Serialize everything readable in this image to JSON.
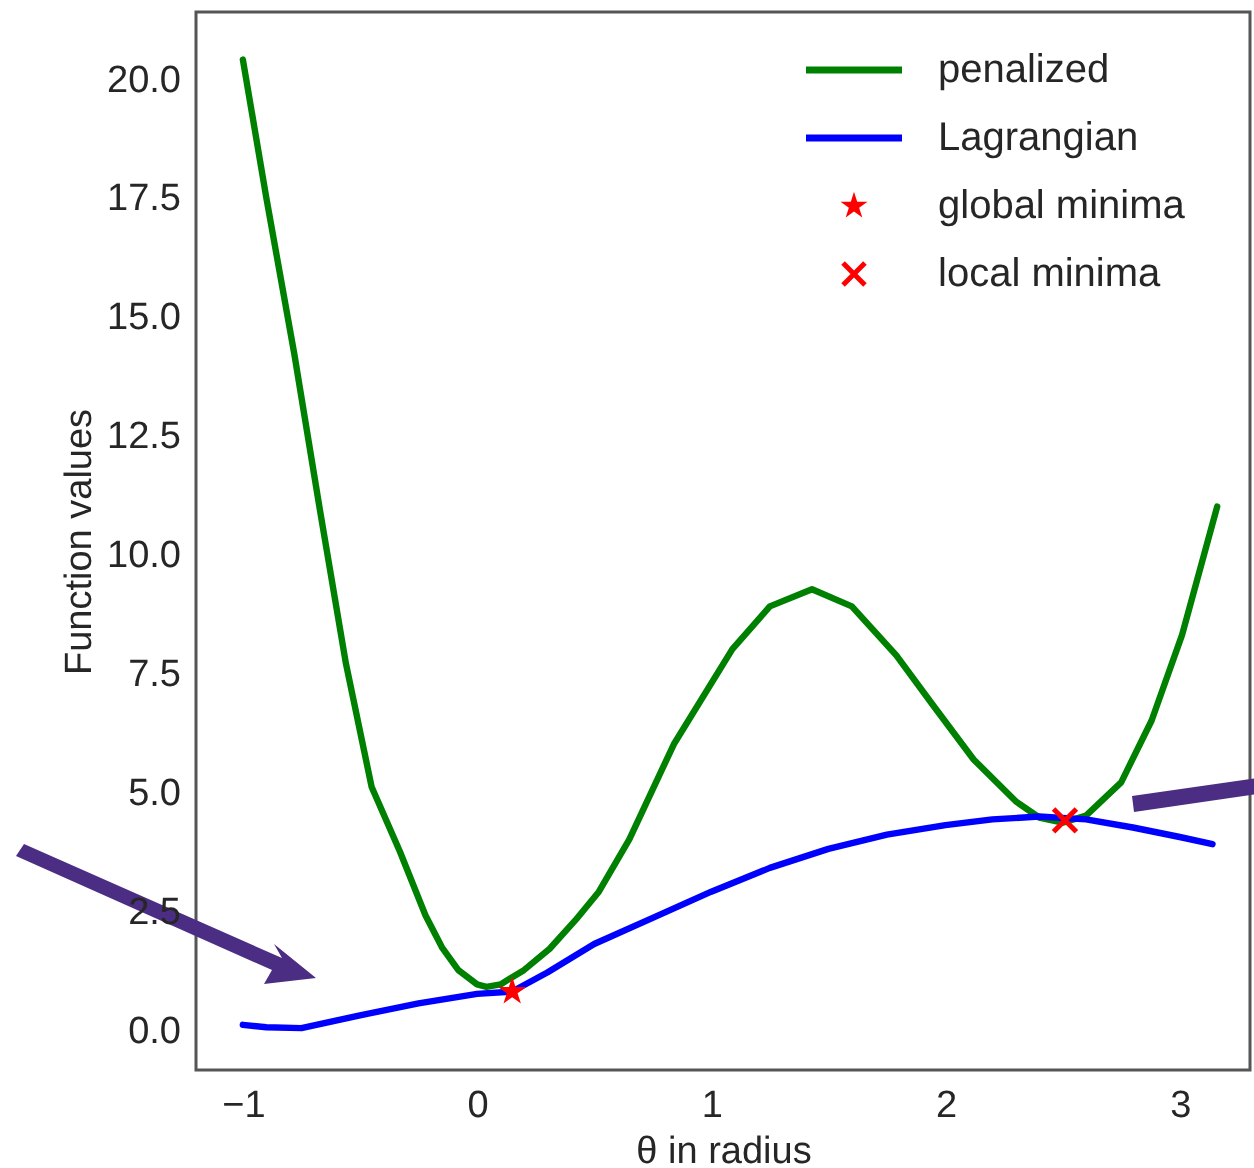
{
  "chart_data": {
    "type": "line",
    "xlabel": "θ in radius",
    "ylabel": "Function values",
    "xlim": [
      -1.2,
      3.3
    ],
    "ylim": [
      -0.85,
      21.4
    ],
    "xticks": [
      {
        "value": -1,
        "label": "−1"
      },
      0,
      1,
      2,
      3
    ],
    "yticks": [
      {
        "value": 0,
        "label": "0.0"
      },
      {
        "value": 2.5,
        "label": "2.5"
      },
      {
        "value": 5,
        "label": "5.0"
      },
      {
        "value": 7.5,
        "label": "7.5"
      },
      {
        "value": 10,
        "label": "10.0"
      },
      {
        "value": 12.5,
        "label": "12.5"
      },
      {
        "value": 15,
        "label": "15.0"
      },
      {
        "value": 17.5,
        "label": "17.5"
      },
      {
        "value": 20,
        "label": "20.0"
      }
    ],
    "grid": false,
    "legend": "top right",
    "line_style": "solid",
    "series": [
      {
        "name": "penalized",
        "color": "#008000",
        "marker": "none",
        "x": [
          -1.0,
          -0.9,
          -0.78,
          -0.67,
          -0.56,
          -0.45,
          -0.33,
          -0.22,
          -0.15,
          -0.08,
          0.0,
          0.04,
          0.1,
          0.2,
          0.31,
          0.42,
          0.52,
          0.65,
          0.84,
          1.09,
          1.25,
          1.43,
          1.6,
          1.79,
          1.95,
          2.12,
          2.3,
          2.4,
          2.5,
          2.6,
          2.75,
          2.88,
          3.01,
          3.16
        ],
        "values": [
          20.4,
          17.5,
          14.2,
          10.9,
          7.7,
          5.1,
          3.75,
          2.4,
          1.73,
          1.25,
          0.95,
          0.9,
          0.95,
          1.25,
          1.7,
          2.3,
          2.9,
          4.0,
          6.0,
          8.0,
          8.9,
          9.26,
          8.9,
          7.87,
          6.8,
          5.68,
          4.8,
          4.46,
          4.35,
          4.5,
          5.2,
          6.5,
          8.3,
          11.0
        ]
      },
      {
        "name": "Lagrangian",
        "color": "#0000ff",
        "marker": "none",
        "x": [
          -1.0,
          -0.9,
          -0.75,
          -0.5,
          -0.25,
          0.0,
          0.15,
          0.3,
          0.5,
          0.75,
          1.0,
          1.25,
          1.5,
          1.75,
          2.0,
          2.2,
          2.4,
          2.6,
          2.8,
          3.0,
          3.14
        ],
        "values": [
          0.1,
          0.05,
          0.03,
          0.3,
          0.55,
          0.75,
          0.8,
          1.2,
          1.8,
          2.35,
          2.9,
          3.4,
          3.8,
          4.1,
          4.3,
          4.42,
          4.48,
          4.42,
          4.25,
          4.05,
          3.9
        ]
      },
      {
        "name": "global minima",
        "type": "scatter",
        "color": "#ff0000",
        "marker": "star",
        "x": [
          0.15
        ],
        "values": [
          0.8
        ]
      },
      {
        "name": "local minima",
        "type": "scatter",
        "color": "#ff0000",
        "marker": "cross",
        "x": [
          2.51
        ],
        "values": [
          4.4
        ]
      }
    ]
  }
}
